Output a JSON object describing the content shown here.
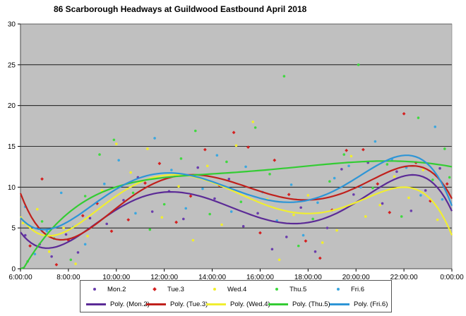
{
  "chart_data": {
    "type": "scatter",
    "title": "86 Scarborough Headways at Guildwood Eastbound April 2018",
    "xlabel": "",
    "ylabel": "",
    "x_tick_labels": [
      "6:00:00",
      "8:00:00",
      "10:00:00",
      "12:00:00",
      "14:00:00",
      "16:00:00",
      "18:00:00",
      "20:00:00",
      "22:00:00",
      "0:00:00"
    ],
    "xlim_hours": [
      6,
      24
    ],
    "ylim": [
      0,
      30
    ],
    "y_ticks": [
      0,
      5,
      10,
      15,
      20,
      25,
      30
    ],
    "grid": "horizontal",
    "legend_placement": "bottom",
    "plot_background": "#c0c0c0",
    "series": [
      {
        "name": "Mon.2",
        "marker": "dot",
        "color": "#6a3dad",
        "trend_name": "Poly. (Mon.2)",
        "trend_color": "#5b2a96",
        "points": [
          [
            6.2,
            4.1
          ],
          [
            6.8,
            3.0
          ],
          [
            7.3,
            1.5
          ],
          [
            7.9,
            4.2
          ],
          [
            8.4,
            2.0
          ],
          [
            8.9,
            6.2
          ],
          [
            9.6,
            5.5
          ],
          [
            10.3,
            8.4
          ],
          [
            10.9,
            11.2
          ],
          [
            11.5,
            7.0
          ],
          [
            12.2,
            9.5
          ],
          [
            12.8,
            6.1
          ],
          [
            13.4,
            12.4
          ],
          [
            14.1,
            8.6
          ],
          [
            14.7,
            11.0
          ],
          [
            15.3,
            5.2
          ],
          [
            15.9,
            6.8
          ],
          [
            16.5,
            2.4
          ],
          [
            17.1,
            3.9
          ],
          [
            17.7,
            7.5
          ],
          [
            18.3,
            2.1
          ],
          [
            18.8,
            5.0
          ],
          [
            19.4,
            12.2
          ],
          [
            19.9,
            9.1
          ],
          [
            20.5,
            13.0
          ],
          [
            21.1,
            8.0
          ],
          [
            21.7,
            11.9
          ],
          [
            22.3,
            7.1
          ],
          [
            22.9,
            9.6
          ],
          [
            23.5,
            12.3
          ]
        ]
      },
      {
        "name": "Tue.3",
        "marker": "diamond",
        "color": "#d42020",
        "trend_name": "Poly. (Tue.3)",
        "trend_color": "#c0201c",
        "points": [
          [
            6.4,
            2.8
          ],
          [
            6.9,
            11.0
          ],
          [
            7.5,
            0.5
          ],
          [
            8.0,
            3.5
          ],
          [
            8.6,
            6.5
          ],
          [
            9.2,
            8.0
          ],
          [
            9.8,
            4.6
          ],
          [
            10.5,
            6.0
          ],
          [
            11.2,
            10.5
          ],
          [
            11.8,
            12.9
          ],
          [
            12.5,
            5.7
          ],
          [
            13.1,
            8.9
          ],
          [
            13.7,
            14.6
          ],
          [
            14.3,
            10.2
          ],
          [
            14.9,
            16.7
          ],
          [
            15.5,
            14.9
          ],
          [
            16.0,
            4.4
          ],
          [
            16.6,
            13.3
          ],
          [
            17.2,
            9.1
          ],
          [
            17.9,
            3.4
          ],
          [
            18.5,
            1.3
          ],
          [
            19.0,
            7.2
          ],
          [
            19.6,
            14.5
          ],
          [
            20.3,
            14.6
          ],
          [
            20.9,
            10.4
          ],
          [
            21.4,
            6.9
          ],
          [
            22.0,
            19.0
          ],
          [
            22.5,
            13.0
          ],
          [
            23.1,
            8.3
          ],
          [
            23.8,
            10.4
          ]
        ]
      },
      {
        "name": "Wed.4",
        "marker": "dot",
        "color": "#f2ef2a",
        "trend_name": "Poly. (Wed.4)",
        "trend_color": "#f0ee30",
        "points": [
          [
            6.1,
            5.6
          ],
          [
            6.7,
            7.3
          ],
          [
            7.2,
            2.1
          ],
          [
            7.8,
            5.0
          ],
          [
            8.3,
            0.6
          ],
          [
            8.8,
            4.0
          ],
          [
            9.4,
            9.6
          ],
          [
            10.0,
            15.3
          ],
          [
            10.6,
            11.8
          ],
          [
            11.3,
            14.7
          ],
          [
            11.9,
            6.3
          ],
          [
            12.6,
            10.1
          ],
          [
            13.2,
            3.5
          ],
          [
            13.8,
            12.6
          ],
          [
            14.4,
            5.4
          ],
          [
            15.0,
            15.1
          ],
          [
            15.7,
            18.0
          ],
          [
            16.3,
            8.5
          ],
          [
            16.8,
            1.1
          ],
          [
            17.4,
            6.6
          ],
          [
            18.0,
            9.0
          ],
          [
            18.6,
            3.2
          ],
          [
            19.2,
            4.7
          ],
          [
            19.8,
            13.8
          ],
          [
            20.4,
            6.4
          ],
          [
            21.0,
            7.8
          ],
          [
            21.6,
            11.3
          ],
          [
            22.2,
            8.7
          ],
          [
            22.8,
            12.1
          ],
          [
            23.4,
            6.0
          ]
        ]
      },
      {
        "name": "Thu.5",
        "marker": "dot",
        "color": "#3fd93f",
        "trend_name": "Poly. (Thu.5)",
        "trend_color": "#33cc33",
        "points": [
          [
            6.3,
            0.9
          ],
          [
            6.9,
            5.8
          ],
          [
            7.4,
            3.7
          ],
          [
            8.1,
            1.1
          ],
          [
            8.7,
            8.9
          ],
          [
            9.3,
            14.0
          ],
          [
            9.9,
            15.8
          ],
          [
            10.7,
            9.3
          ],
          [
            11.4,
            4.8
          ],
          [
            12.0,
            7.9
          ],
          [
            12.7,
            13.5
          ],
          [
            13.3,
            16.9
          ],
          [
            13.9,
            6.7
          ],
          [
            14.6,
            13.1
          ],
          [
            15.2,
            8.2
          ],
          [
            15.8,
            17.3
          ],
          [
            16.4,
            11.6
          ],
          [
            17.0,
            23.6
          ],
          [
            17.6,
            2.8
          ],
          [
            18.2,
            6.1
          ],
          [
            18.9,
            10.7
          ],
          [
            19.5,
            14.0
          ],
          [
            20.1,
            25.0
          ],
          [
            20.7,
            9.9
          ],
          [
            21.3,
            12.8
          ],
          [
            21.9,
            6.4
          ],
          [
            22.6,
            18.5
          ],
          [
            23.2,
            10.9
          ],
          [
            23.7,
            14.7
          ],
          [
            23.9,
            11.2
          ]
        ]
      },
      {
        "name": "Fri.6",
        "marker": "dot",
        "color": "#3ba7e0",
        "trend_name": "Poly. (Fri.6)",
        "trend_color": "#2e95d6",
        "points": [
          [
            6.2,
            7.6
          ],
          [
            6.6,
            1.8
          ],
          [
            7.1,
            4.6
          ],
          [
            7.7,
            9.3
          ],
          [
            8.2,
            5.1
          ],
          [
            8.7,
            3.0
          ],
          [
            9.5,
            10.4
          ],
          [
            10.1,
            13.3
          ],
          [
            10.8,
            6.8
          ],
          [
            11.6,
            16.0
          ],
          [
            12.3,
            12.1
          ],
          [
            12.9,
            7.4
          ],
          [
            13.6,
            9.8
          ],
          [
            14.2,
            13.9
          ],
          [
            14.8,
            7.0
          ],
          [
            15.4,
            12.5
          ],
          [
            16.1,
            9.4
          ],
          [
            16.7,
            5.9
          ],
          [
            17.3,
            10.3
          ],
          [
            17.8,
            4.1
          ],
          [
            18.4,
            8.1
          ],
          [
            19.1,
            11.1
          ],
          [
            19.7,
            12.6
          ],
          [
            20.2,
            10.0
          ],
          [
            20.8,
            15.6
          ],
          [
            21.5,
            13.4
          ],
          [
            22.1,
            12.4
          ],
          [
            22.7,
            9.0
          ],
          [
            23.3,
            17.4
          ],
          [
            23.6,
            8.5
          ]
        ]
      }
    ]
  }
}
